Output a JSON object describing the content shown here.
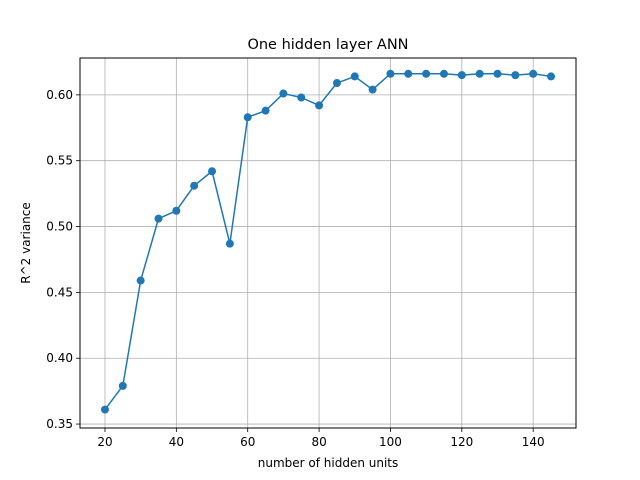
{
  "chart_data": {
    "type": "line",
    "title": "One hidden layer ANN",
    "xlabel": "number of hidden units",
    "ylabel": "R^2 variance",
    "xlim": [
      13,
      152
    ],
    "ylim": [
      0.347,
      0.628
    ],
    "xticks": [
      20,
      40,
      60,
      80,
      100,
      120,
      140
    ],
    "yticks": [
      0.35,
      0.4,
      0.45,
      0.5,
      0.55,
      0.6
    ],
    "xtick_labels": [
      "20",
      "40",
      "60",
      "80",
      "100",
      "120",
      "140"
    ],
    "ytick_labels": [
      "0.35",
      "0.40",
      "0.45",
      "0.50",
      "0.55",
      "0.60"
    ],
    "grid": true,
    "line_color": "#1f77b4",
    "marker": "circle",
    "x": [
      20,
      25,
      30,
      35,
      40,
      45,
      50,
      55,
      60,
      65,
      70,
      75,
      80,
      85,
      90,
      95,
      100,
      105,
      110,
      115,
      120,
      125,
      130,
      135,
      140,
      145
    ],
    "y": [
      0.361,
      0.379,
      0.459,
      0.506,
      0.512,
      0.531,
      0.542,
      0.487,
      0.583,
      0.588,
      0.601,
      0.598,
      0.592,
      0.609,
      0.614,
      0.604,
      0.616,
      0.616,
      0.616,
      0.616,
      0.615,
      0.616,
      0.616,
      0.615,
      0.616,
      0.614
    ]
  }
}
